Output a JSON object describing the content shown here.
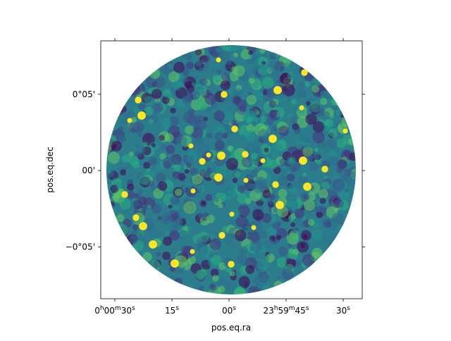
{
  "chart_data": {
    "type": "image",
    "xlabel": "pos.eq.ra",
    "ylabel": "pos.eq.dec",
    "xlim": [
      33.7,
      -35
    ],
    "ylim": [
      -8.4,
      8.5
    ],
    "xticks": [
      {
        "value": 30,
        "label": "0h00m30s"
      },
      {
        "value": 15,
        "label": "15s"
      },
      {
        "value": 0,
        "label": "00s"
      },
      {
        "value": -15,
        "label": "23h59m45s"
      },
      {
        "value": -30,
        "label": "30s"
      }
    ],
    "yticks": [
      {
        "value": 5,
        "label": "0°05'"
      },
      {
        "value": 0,
        "label": "00'"
      },
      {
        "value": -5,
        "label": "−0°05'"
      }
    ]
  }
}
